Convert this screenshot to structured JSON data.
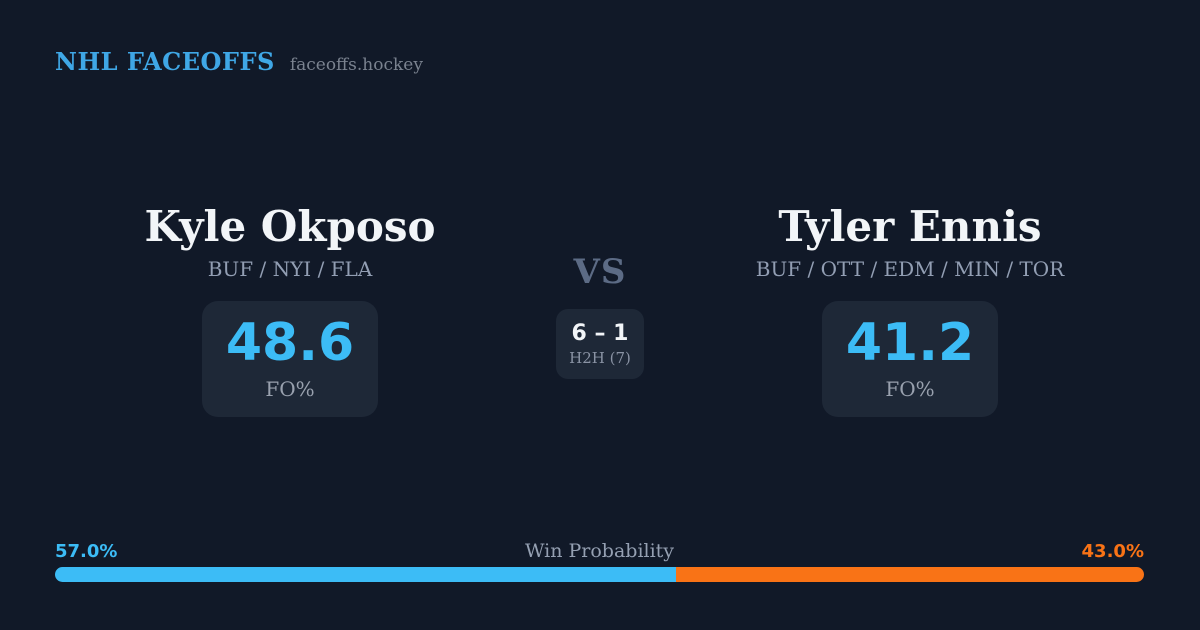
{
  "header": {
    "brand": "NHL FACEOFFS",
    "domain": "faceoffs.hockey"
  },
  "matchup": {
    "player_left": {
      "name": "Kyle Okposo",
      "teams": "BUF / NYI / FLA",
      "fo_value": "48.6",
      "fo_label": "FO%"
    },
    "player_right": {
      "name": "Tyler Ennis",
      "teams": "BUF / OTT / EDM / MIN / TOR",
      "fo_value": "41.2",
      "fo_label": "FO%"
    },
    "center": {
      "vs_label": "VS",
      "h2h_score": "6 – 1",
      "h2h_label": "H2H (7)"
    }
  },
  "win_probability": {
    "title": "Win Probability",
    "left_label": "57.0%",
    "right_label": "43.0%",
    "left_value": 57.0,
    "right_value": 43.0
  },
  "colors": {
    "background": "#111928",
    "card": "#1E2837",
    "brand_blue": "#3FA7E6",
    "accent_blue": "#3CBCF6",
    "accent_orange": "#F97316",
    "text_primary": "#F2F5F8",
    "text_muted": "#929EB3",
    "text_muted2": "#95A0B2",
    "text_label": "#99A1AE",
    "text_label2": "#8A93A4",
    "text_vs": "#5C6B85",
    "text_dim": "#7A828F"
  }
}
